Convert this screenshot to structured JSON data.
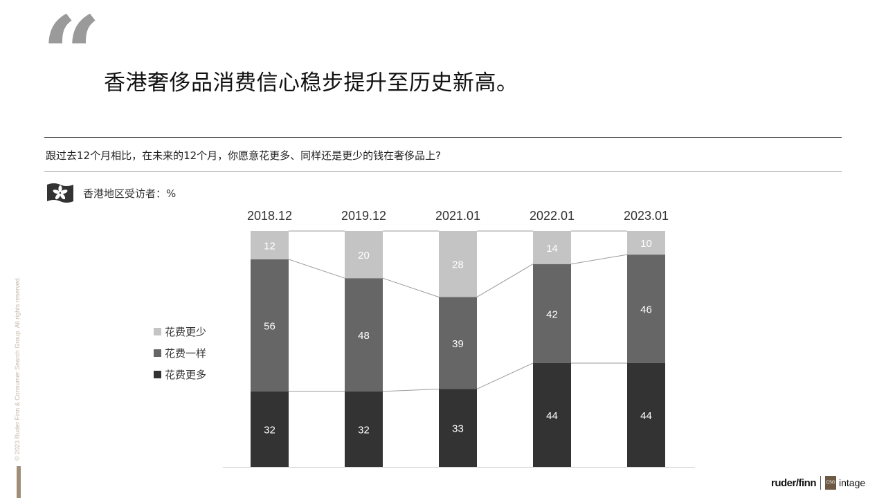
{
  "headline": "香港奢侈品消费信心稳步提升至历史新高。",
  "question": "跟过去12个月相比，在未来的12个月，你愿意花更多、同样还是更少的钱在奢侈品上?",
  "respondent_label": "香港地区受访者：%",
  "copyright": "© 2023 Ruder Finn & Consumer Search Group. All rights reserved.",
  "logos": {
    "ruderfinn": "ruder/finn",
    "csg": "CSG",
    "intage": "intage"
  },
  "colors": {
    "less": "#c4c4c4",
    "same": "#666666",
    "more": "#333333",
    "quote": "#9a9a9a"
  },
  "chart_data": {
    "type": "bar",
    "stacked": true,
    "normalized_to_100": true,
    "categories": [
      "2018.12",
      "2019.12",
      "2021.01",
      "2022.01",
      "2023.01"
    ],
    "series": [
      {
        "name": "花费更多",
        "values": [
          32,
          32,
          33,
          44,
          44
        ]
      },
      {
        "name": "花费一样",
        "values": [
          56,
          48,
          39,
          42,
          46
        ]
      },
      {
        "name": "花费更少",
        "values": [
          12,
          20,
          28,
          14,
          10
        ]
      }
    ],
    "legend": [
      "花费更少",
      "花费一样",
      "花费更多"
    ],
    "legend_position": "left",
    "connector_lines": true,
    "grid": false
  }
}
